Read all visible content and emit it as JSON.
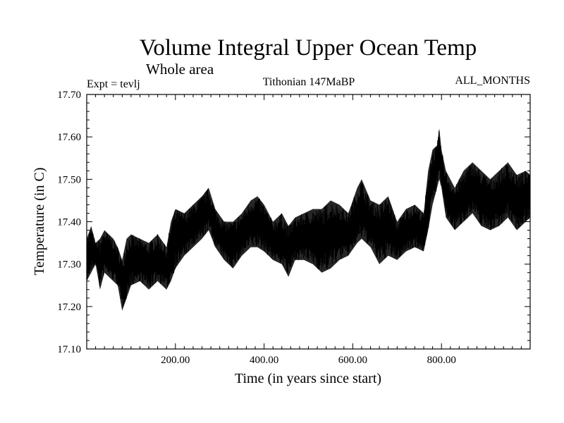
{
  "chart_data": {
    "type": "line",
    "title": "Volume Integral Upper Ocean Temp",
    "subtitle": "Whole area",
    "experiment": "Expt = tevlj",
    "period": "Tithonian 147MaBP",
    "months": "ALL_MONTHS",
    "xlabel": "Time (in years since start)",
    "ylabel": "Temperature (in C)",
    "xlim": [
      0,
      1000
    ],
    "ylim": [
      17.1,
      17.7
    ],
    "xticks": [
      200,
      400,
      600,
      800
    ],
    "xtick_labels": [
      "200.00",
      "400.00",
      "600.00",
      "800.00"
    ],
    "yticks": [
      17.1,
      17.2,
      17.3,
      17.4,
      17.5,
      17.6,
      17.7
    ],
    "ytick_labels": [
      "17.10",
      "17.20",
      "17.30",
      "17.40",
      "17.50",
      "17.60",
      "17.70"
    ],
    "series": [
      {
        "name": "volume integral upper ocean temperature",
        "color": "#000000",
        "envelope": {
          "x": [
            0,
            10,
            20,
            30,
            40,
            50,
            60,
            70,
            80,
            90,
            100,
            120,
            140,
            160,
            180,
            190,
            200,
            220,
            240,
            260,
            275,
            290,
            310,
            330,
            350,
            370,
            385,
            400,
            420,
            440,
            455,
            470,
            490,
            510,
            530,
            550,
            570,
            590,
            610,
            620,
            640,
            660,
            680,
            700,
            720,
            740,
            760,
            770,
            780,
            790,
            795,
            800,
            810,
            830,
            850,
            870,
            890,
            910,
            930,
            950,
            970,
            990,
            1000
          ],
          "high": [
            17.36,
            17.39,
            17.35,
            17.36,
            17.38,
            17.37,
            17.36,
            17.34,
            17.31,
            17.36,
            17.37,
            17.36,
            17.35,
            17.37,
            17.34,
            17.4,
            17.43,
            17.42,
            17.44,
            17.46,
            17.48,
            17.43,
            17.4,
            17.4,
            17.42,
            17.45,
            17.46,
            17.44,
            17.4,
            17.42,
            17.39,
            17.41,
            17.42,
            17.43,
            17.43,
            17.45,
            17.44,
            17.42,
            17.48,
            17.5,
            17.45,
            17.44,
            17.46,
            17.4,
            17.43,
            17.44,
            17.42,
            17.52,
            17.57,
            17.58,
            17.62,
            17.57,
            17.52,
            17.48,
            17.52,
            17.54,
            17.52,
            17.5,
            17.52,
            17.54,
            17.51,
            17.52,
            17.51
          ],
          "low": [
            17.26,
            17.28,
            17.3,
            17.24,
            17.28,
            17.27,
            17.26,
            17.25,
            17.19,
            17.22,
            17.25,
            17.26,
            17.24,
            17.26,
            17.24,
            17.26,
            17.29,
            17.32,
            17.34,
            17.36,
            17.38,
            17.34,
            17.31,
            17.29,
            17.32,
            17.34,
            17.34,
            17.33,
            17.31,
            17.3,
            17.27,
            17.31,
            17.31,
            17.3,
            17.28,
            17.29,
            17.31,
            17.32,
            17.35,
            17.36,
            17.34,
            17.3,
            17.32,
            17.31,
            17.33,
            17.34,
            17.33,
            17.38,
            17.44,
            17.48,
            17.5,
            17.48,
            17.41,
            17.38,
            17.4,
            17.42,
            17.39,
            17.38,
            17.39,
            17.41,
            17.38,
            17.4,
            17.41
          ]
        }
      }
    ]
  }
}
